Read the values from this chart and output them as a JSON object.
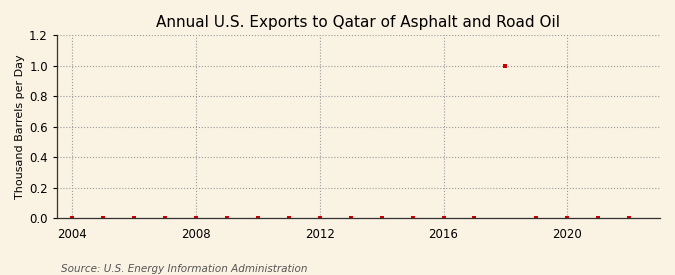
{
  "title": "Annual U.S. Exports to Qatar of Asphalt and Road Oil",
  "ylabel": "Thousand Barrels per Day",
  "source": "Source: U.S. Energy Information Administration",
  "xlim": [
    2003.5,
    2023
  ],
  "ylim": [
    0.0,
    1.2
  ],
  "yticks": [
    0.0,
    0.2,
    0.4,
    0.6,
    0.8,
    1.0,
    1.2
  ],
  "xticks": [
    2004,
    2008,
    2012,
    2016,
    2020
  ],
  "years": [
    2004,
    2005,
    2006,
    2007,
    2008,
    2009,
    2010,
    2011,
    2012,
    2013,
    2014,
    2015,
    2016,
    2017,
    2018,
    2019,
    2020,
    2021,
    2022
  ],
  "values": [
    0.0,
    0.0,
    0.0,
    0.0,
    0.0,
    0.0,
    0.0,
    0.0,
    0.0,
    0.0,
    0.0,
    0.0,
    0.0,
    0.0,
    1.0,
    0.0,
    0.0,
    0.0,
    0.0
  ],
  "marker_color": "#cc0000",
  "marker_size": 3.5,
  "background_color": "#faf3e3",
  "grid_color": "#999999",
  "title_fontsize": 11,
  "label_fontsize": 8,
  "tick_fontsize": 8.5,
  "source_fontsize": 7.5
}
